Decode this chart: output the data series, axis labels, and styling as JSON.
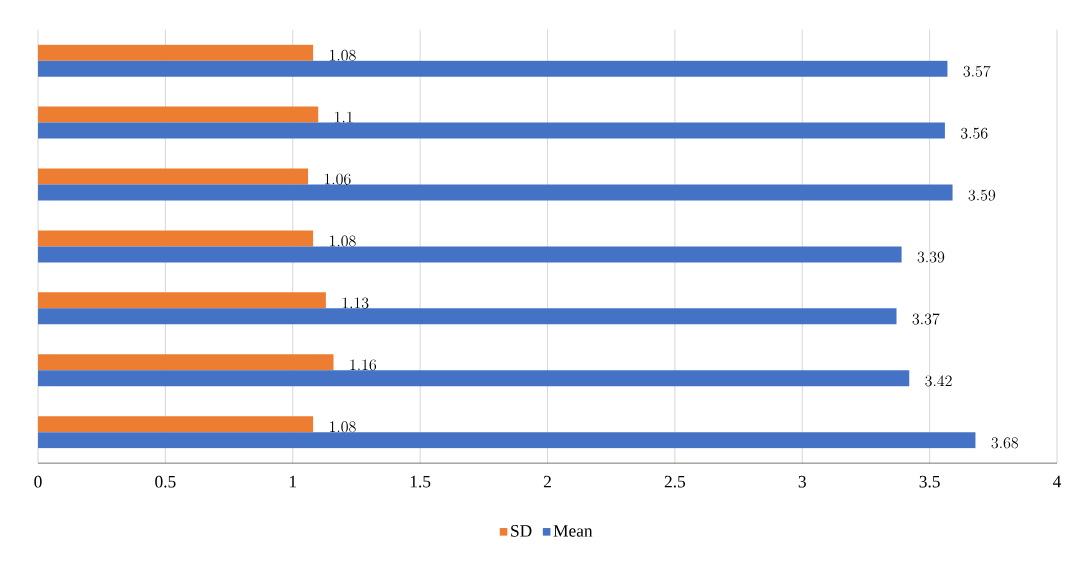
{
  "chart_data": {
    "type": "bar",
    "orientation": "horizontal",
    "categories": [
      null,
      null,
      null,
      null,
      null,
      null,
      null
    ],
    "series": [
      {
        "name": "SD",
        "color": "#ed7d31",
        "values": [
          1.08,
          1.1,
          1.06,
          1.08,
          1.13,
          1.16,
          1.08
        ]
      },
      {
        "name": "Mean",
        "color": "#4472c4",
        "values": [
          3.57,
          3.56,
          3.59,
          3.39,
          3.37,
          3.42,
          3.68
        ]
      }
    ],
    "xlim": [
      0,
      4
    ],
    "xticks": [
      0,
      0.5,
      1,
      1.5,
      2,
      2.5,
      3,
      3.5,
      4
    ],
    "grid": "x",
    "legend": "bottom",
    "data_labels": true
  }
}
